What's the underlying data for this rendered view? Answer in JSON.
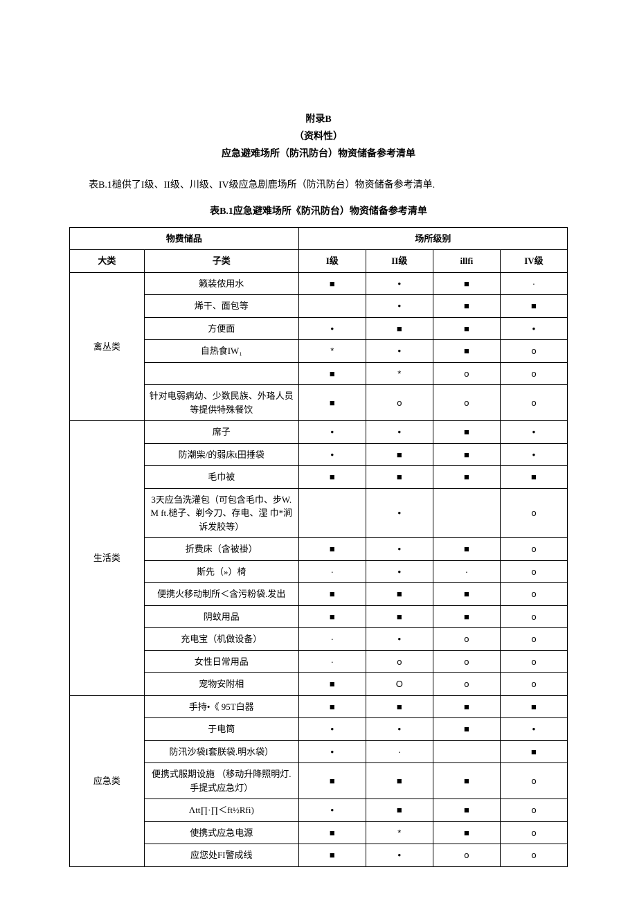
{
  "header": {
    "appendix": "附录B",
    "type": "（资料性）",
    "title": "应急避难场所（防汛防台）物资储备参考清单"
  },
  "intro": "表B.1槌供了I级、II级、川级、IV级应急剧鹿场所（防汛防台）物资储备参考清单.",
  "caption": "表B.1应急避难场所《防汛防台）物资储备参考清单",
  "columns": {
    "group1_label": "物费储品",
    "group2_label": "场所级别",
    "cat": "大类",
    "sub": "子类",
    "l1": "I级",
    "l2": "II级",
    "l3": "illfi",
    "l4": "IV级"
  },
  "symbols": {
    "filled_square": "■",
    "bullet": "•",
    "small_dot": "·",
    "star": "*",
    "circle_o": "o",
    "circle_big": "O",
    "blank": ""
  },
  "categories": [
    {
      "name": "禽丛类",
      "rows": [
        {
          "sub": "籁装侬用水",
          "v": [
            "filled_square",
            "bullet",
            "filled_square",
            "small_dot"
          ]
        },
        {
          "sub": "烯干、面包等",
          "v": [
            "blank",
            "bullet",
            "filled_square",
            "filled_square"
          ]
        },
        {
          "sub": "方便面",
          "v": [
            "bullet",
            "filled_square",
            "filled_square",
            "bullet"
          ]
        },
        {
          "sub": "自热食IW₁",
          "v": [
            "star",
            "bullet",
            "filled_square",
            "circle_o"
          ]
        },
        {
          "sub": "",
          "v": [
            "filled_square",
            "star",
            "circle_o",
            "circle_o"
          ]
        },
        {
          "sub": "针对电弱病幼、少数民族、外珞人员等提供特殊餐饮",
          "v": [
            "filled_square",
            "circle_o",
            "circle_o",
            "circle_o"
          ]
        }
      ]
    },
    {
      "name": "生活类",
      "rows": [
        {
          "sub": "席子",
          "v": [
            "bullet",
            "bullet",
            "filled_square",
            "bullet"
          ]
        },
        {
          "sub": "防潮柴/的弱床t田捶袋",
          "v": [
            "bullet",
            "filled_square",
            "filled_square",
            "bullet"
          ]
        },
        {
          "sub": "毛巾被",
          "v": [
            "filled_square",
            "filled_square",
            "filled_square",
            "filled_square"
          ]
        },
        {
          "sub": "3天应刍洗灌包（可包含毛巾、步W. M ft.槌子、剃今刀、存电、湿 巾*涧诉发胶等）",
          "v": [
            "blank",
            "bullet",
            "blank",
            "circle_o"
          ]
        },
        {
          "sub": "折费床（含被褂）",
          "v": [
            "filled_square",
            "bullet",
            "filled_square",
            "circle_o"
          ]
        },
        {
          "sub": "斯先（»）椅",
          "v": [
            "small_dot",
            "bullet",
            "small_dot",
            "circle_o"
          ]
        },
        {
          "sub": "便携火移动制所＜含污粉袋.发出",
          "v": [
            "filled_square",
            "filled_square",
            "filled_square",
            "circle_o"
          ]
        },
        {
          "sub": "阴蚊用品",
          "v": [
            "filled_square",
            "filled_square",
            "filled_square",
            "circle_o"
          ]
        },
        {
          "sub": "充电宝（机做设备）",
          "v": [
            "small_dot",
            "bullet",
            "circle_o",
            "circle_o"
          ]
        },
        {
          "sub": "女性日常用品",
          "v": [
            "small_dot",
            "circle_o",
            "circle_o",
            "circle_o"
          ]
        },
        {
          "sub": "宠物安附相",
          "v": [
            "filled_square",
            "circle_big",
            "circle_o",
            "circle_o"
          ]
        }
      ]
    },
    {
      "name": "应急类",
      "rows": [
        {
          "sub": "手持•《 95T白器",
          "v": [
            "filled_square",
            "filled_square",
            "filled_square",
            "filled_square"
          ]
        },
        {
          "sub": "于电筒",
          "v": [
            "bullet",
            "bullet",
            "filled_square",
            "bullet"
          ]
        },
        {
          "sub": "防汛沙袋I套朕袋.明水袋）",
          "v": [
            "bullet",
            "small_dot",
            "blank",
            "filled_square"
          ]
        },
        {
          "sub": "便携式服期设施 （移动升降照明灯.手提式应急灯）",
          "v": [
            "filled_square",
            "filled_square",
            "filled_square",
            "circle_o"
          ]
        },
        {
          "sub": "Λtt∏·∏＜ft½Rfi)",
          "v": [
            "bullet",
            "filled_square",
            "filled_square",
            "circle_o"
          ]
        },
        {
          "sub": "使携式应急电源",
          "v": [
            "filled_square",
            "star",
            "filled_square",
            "circle_o"
          ]
        },
        {
          "sub": "应您处FI警成线",
          "v": [
            "filled_square",
            "bullet",
            "circle_o",
            "circle_o"
          ]
        }
      ]
    }
  ]
}
